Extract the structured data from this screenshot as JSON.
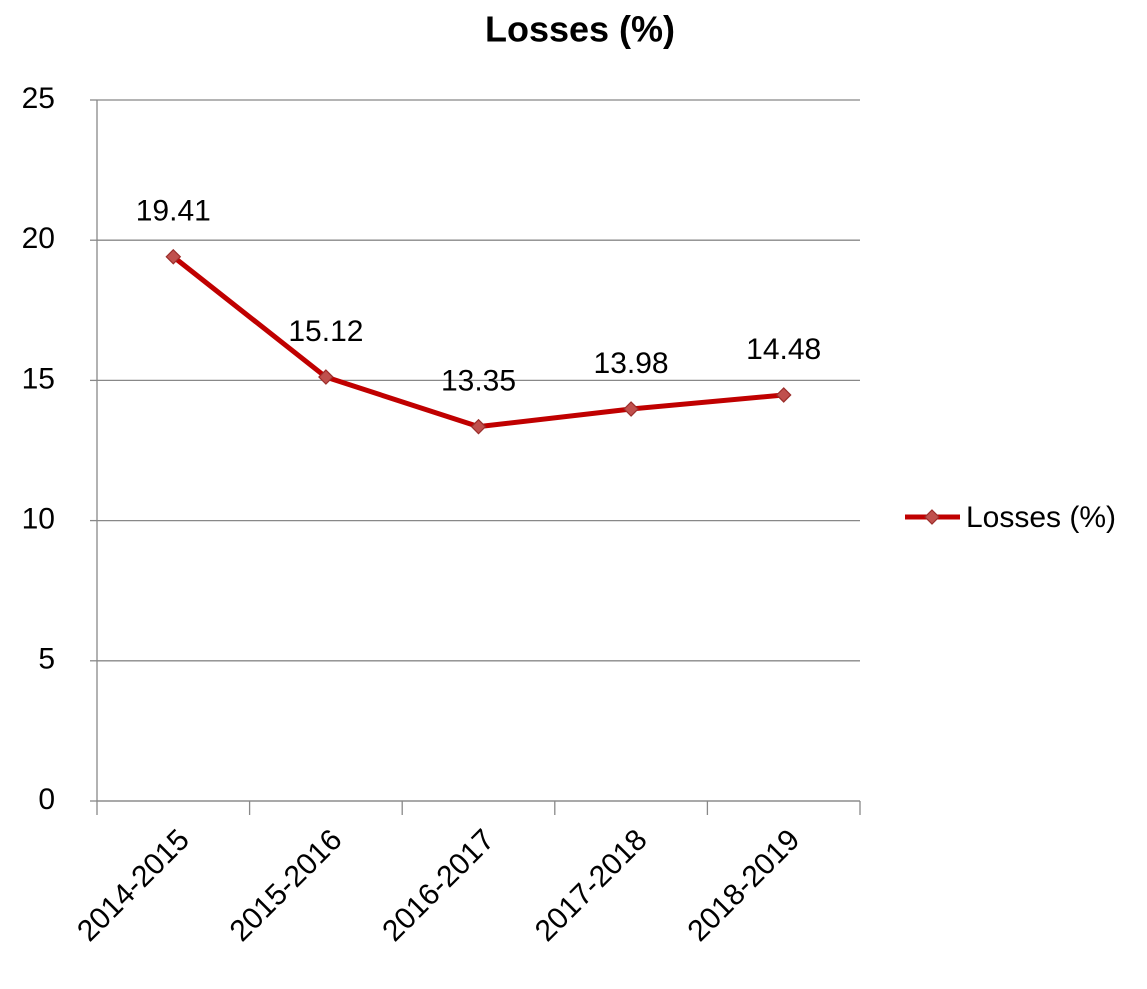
{
  "chart_data": {
    "type": "line",
    "title": "Losses (%)",
    "categories": [
      "2014-2015",
      "2015-2016",
      "2016-2017",
      "2017-2018",
      "2018-2019"
    ],
    "series": [
      {
        "name": "Losses (%)",
        "color": "#c00000",
        "marker_color": "#c0504d",
        "values": [
          19.41,
          15.12,
          13.35,
          13.98,
          14.48
        ]
      }
    ],
    "ylim": [
      0,
      25
    ],
    "yticks": [
      0,
      5,
      10,
      15,
      20,
      25
    ],
    "grid": true,
    "legend": "right"
  }
}
